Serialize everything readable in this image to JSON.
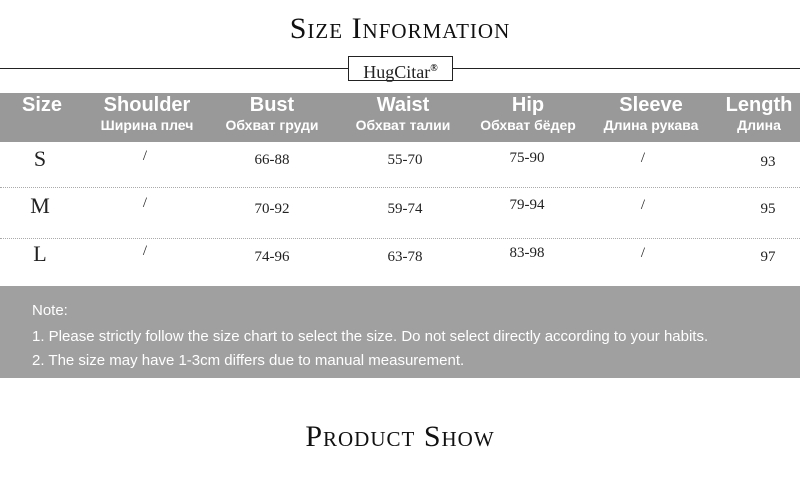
{
  "title": "Size Information",
  "brand": {
    "name": "HugCitar",
    "mark": "®"
  },
  "table": {
    "headers": [
      {
        "en": "Size",
        "ru": ""
      },
      {
        "en": "Shoulder",
        "ru": "Ширина плеч"
      },
      {
        "en": "Bust",
        "ru": "Обхват груди"
      },
      {
        "en": "Waist",
        "ru": "Обхват талии"
      },
      {
        "en": "Hip",
        "ru": "Обхват бёдер"
      },
      {
        "en": "Sleeve",
        "ru": "Длина рукава"
      },
      {
        "en": "Length",
        "ru": "Длина"
      }
    ],
    "rows": [
      [
        "S",
        "/",
        "66-88",
        "55-70",
        "75-90",
        "/",
        "93"
      ],
      [
        "M",
        "/",
        "70-92",
        "59-74",
        "79-94",
        "/",
        "95"
      ],
      [
        "L",
        "/",
        "74-96",
        "63-78",
        "83-98",
        "/",
        "97"
      ]
    ]
  },
  "note": {
    "label": "Note:",
    "items": [
      "1. Please strictly follow the size chart to select the size. Do not select directly according to your habits.",
      "2. The size may have 1-3cm differs due to manual measurement."
    ]
  },
  "section_title": "Product Show",
  "colors": {
    "header_bg": "#999999",
    "note_bg": "#a0a0a0"
  }
}
